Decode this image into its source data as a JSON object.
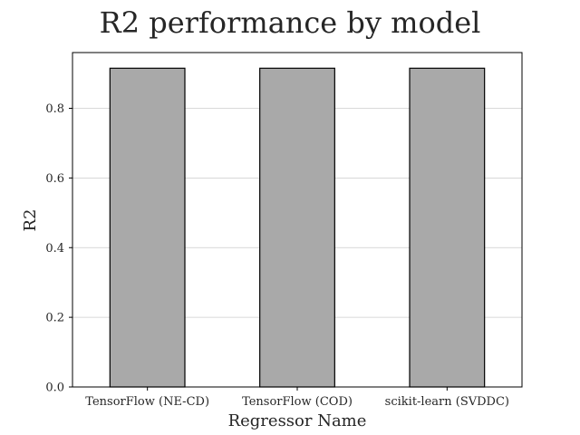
{
  "chart_data": {
    "type": "bar",
    "title": "R2 performance by model",
    "xlabel": "Regressor Name",
    "ylabel": "R2",
    "categories": [
      "TensorFlow (NE-CD)",
      "TensorFlow (COD)",
      "scikit-learn (SVDDC)"
    ],
    "values": [
      0.915,
      0.915,
      0.915
    ],
    "ylim": [
      0,
      0.96
    ],
    "yticks": [
      "0.0",
      "0.2",
      "0.4",
      "0.6",
      "0.8"
    ],
    "grid": "horizontal",
    "colors": {
      "bar_fill": "#a9a9a9",
      "bar_edge": "#000000",
      "grid": "#cccccc",
      "text": "#262626"
    }
  }
}
